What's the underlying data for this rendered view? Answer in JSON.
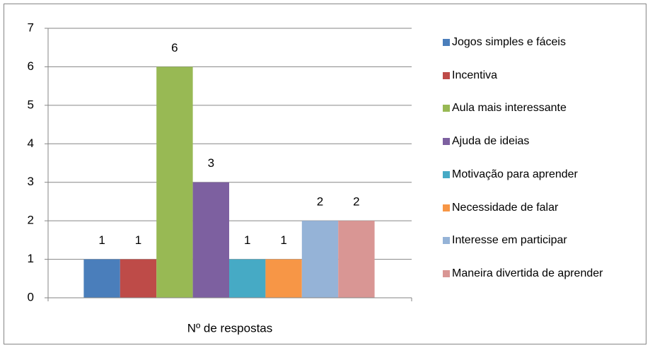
{
  "chart_data": {
    "type": "bar",
    "categories": [
      "Nº de respostas"
    ],
    "series": [
      {
        "name": "Jogos simples e fáceis",
        "color": "#4a7ebb",
        "values": [
          1
        ]
      },
      {
        "name": "Incentiva",
        "color": "#be4b48",
        "values": [
          1
        ]
      },
      {
        "name": "Aula mais interessante",
        "color": "#98b954",
        "values": [
          6
        ]
      },
      {
        "name": "Ajuda de ideias",
        "color": "#7d60a0",
        "values": [
          3
        ]
      },
      {
        "name": "Motivação para aprender",
        "color": "#46aac5",
        "values": [
          1
        ]
      },
      {
        "name": "Necessidade de falar",
        "color": "#f79646",
        "values": [
          1
        ]
      },
      {
        "name": "Interesse em participar",
        "color": "#95b3d7",
        "values": [
          2
        ]
      },
      {
        "name": "Maneira divertida de aprender",
        "color": "#d99694",
        "values": [
          2
        ]
      }
    ],
    "ylim": [
      0,
      7
    ],
    "yticks": [
      0,
      1,
      2,
      3,
      4,
      5,
      6,
      7
    ],
    "grid": true,
    "legend": "right"
  }
}
